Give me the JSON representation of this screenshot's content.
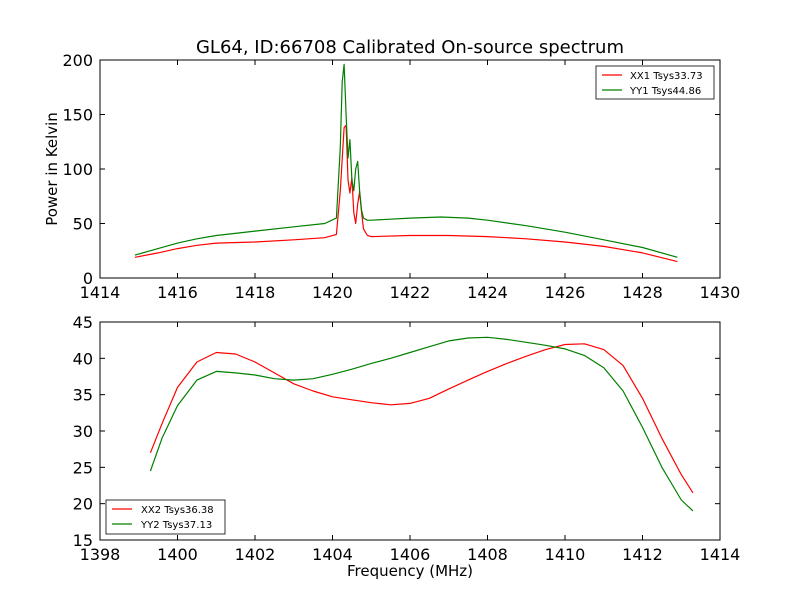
{
  "title": "GL64, ID:66708 Calibrated On-source spectrum",
  "colors": {
    "red": "#ff0000",
    "green": "#008000"
  },
  "chart_data": [
    {
      "type": "line",
      "xlabel": "",
      "ylabel": "Power in Kelvin",
      "xlim": [
        1414,
        1430
      ],
      "ylim": [
        0,
        200
      ],
      "xticks": [
        "1414",
        "1416",
        "1418",
        "1420",
        "1422",
        "1424",
        "1426",
        "1428",
        "1430"
      ],
      "yticks": [
        "0",
        "50",
        "100",
        "150",
        "200"
      ],
      "legend_position": "top-right",
      "series": [
        {
          "name": "XX1 Tsys33.73",
          "color": "#ff0000",
          "x": [
            1414.9,
            1415.5,
            1416,
            1416.5,
            1417,
            1418,
            1419,
            1419.8,
            1420.1,
            1420.2,
            1420.3,
            1420.35,
            1420.4,
            1420.45,
            1420.5,
            1420.55,
            1420.6,
            1420.65,
            1420.7,
            1420.75,
            1420.8,
            1420.9,
            1421,
            1422,
            1423,
            1424,
            1425,
            1426,
            1427,
            1428,
            1428.9
          ],
          "y": [
            19,
            23,
            27,
            30,
            32,
            33,
            35,
            37,
            40,
            80,
            138,
            140,
            90,
            78,
            92,
            60,
            50,
            68,
            79,
            60,
            45,
            39,
            38,
            39,
            39,
            38,
            36,
            33,
            29,
            23,
            15
          ]
        },
        {
          "name": "YY1 Tsys44.86",
          "color": "#008000",
          "x": [
            1414.9,
            1415.5,
            1416,
            1416.5,
            1417,
            1418,
            1419,
            1419.8,
            1420.1,
            1420.2,
            1420.25,
            1420.3,
            1420.35,
            1420.4,
            1420.45,
            1420.5,
            1420.55,
            1420.6,
            1420.65,
            1420.7,
            1420.75,
            1420.8,
            1420.9,
            1421,
            1422,
            1422.8,
            1423.5,
            1424,
            1425,
            1426,
            1427,
            1428,
            1428.9
          ],
          "y": [
            21,
            27,
            32,
            36,
            39,
            43,
            47,
            50,
            55,
            120,
            180,
            196,
            150,
            110,
            127,
            90,
            80,
            100,
            107,
            80,
            62,
            55,
            53,
            53,
            55,
            56,
            55,
            53,
            48,
            42,
            35,
            28,
            19
          ]
        }
      ]
    },
    {
      "type": "line",
      "xlabel": "Frequency (MHz)",
      "ylabel": "",
      "xlim": [
        1398,
        1414
      ],
      "ylim": [
        15,
        45
      ],
      "xticks": [
        "1398",
        "1400",
        "1402",
        "1404",
        "1406",
        "1408",
        "1410",
        "1412",
        "1414"
      ],
      "yticks": [
        "15",
        "20",
        "25",
        "30",
        "35",
        "40",
        "45"
      ],
      "legend_position": "bottom-left",
      "series": [
        {
          "name": "XX2 Tsys36.38",
          "color": "#ff0000",
          "x": [
            1399.3,
            1399.6,
            1400,
            1400.5,
            1401,
            1401.5,
            1402,
            1402.5,
            1403,
            1403.5,
            1404,
            1404.5,
            1405,
            1405.5,
            1406,
            1406.5,
            1407,
            1407.5,
            1408,
            1408.5,
            1409,
            1409.5,
            1410,
            1410.5,
            1411,
            1411.5,
            1412,
            1412.5,
            1413,
            1413.3
          ],
          "y": [
            27,
            31,
            36,
            39.5,
            40.8,
            40.6,
            39.5,
            38,
            36.5,
            35.5,
            34.7,
            34.3,
            33.9,
            33.6,
            33.8,
            34.5,
            35.8,
            37,
            38.2,
            39.3,
            40.3,
            41.2,
            41.9,
            42,
            41.2,
            39,
            34.5,
            29,
            24,
            21.5
          ]
        },
        {
          "name": "YY2 Tsys37.13",
          "color": "#008000",
          "x": [
            1399.3,
            1399.6,
            1400,
            1400.5,
            1401,
            1401.5,
            1402,
            1402.5,
            1403,
            1403.5,
            1404,
            1404.5,
            1405,
            1405.5,
            1406,
            1406.5,
            1407,
            1407.5,
            1408,
            1408.5,
            1409,
            1409.5,
            1410,
            1410.5,
            1411,
            1411.5,
            1412,
            1412.5,
            1413,
            1413.3
          ],
          "y": [
            24.5,
            29,
            33.5,
            37,
            38.2,
            38,
            37.7,
            37.2,
            37,
            37.2,
            37.8,
            38.5,
            39.3,
            40,
            40.8,
            41.6,
            42.4,
            42.8,
            42.9,
            42.6,
            42.2,
            41.8,
            41.3,
            40.4,
            38.7,
            35.5,
            30.5,
            25,
            20.5,
            19
          ]
        }
      ]
    }
  ]
}
